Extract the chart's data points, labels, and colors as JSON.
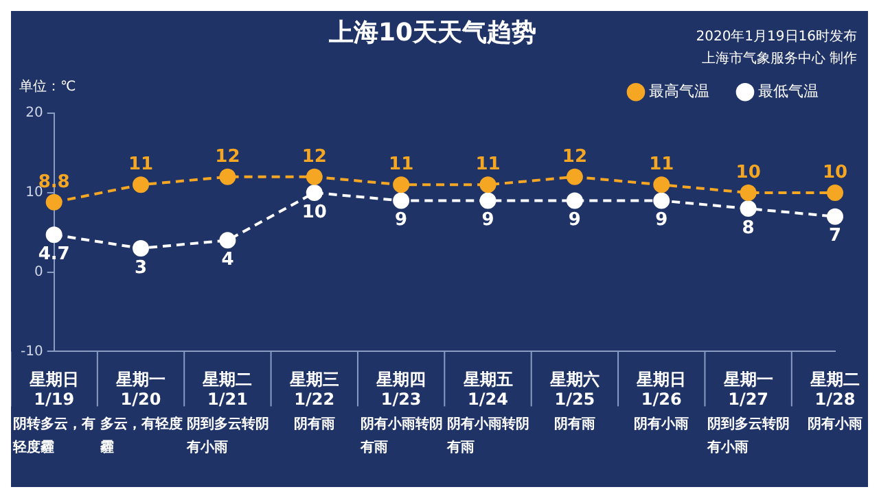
{
  "chart_data": {
    "type": "line",
    "title": "上海10天天气趋势",
    "ylabel": "单位：℃",
    "categories": [
      "星期日\n1/19",
      "星期一\n1/20",
      "星期二\n1/21",
      "星期三\n1/22",
      "星期四\n1/23",
      "星期五\n1/24",
      "星期六\n1/25",
      "星期日\n1/26",
      "星期一\n1/27",
      "星期二\n1/28"
    ],
    "series": [
      {
        "name": "最高气温",
        "color": "#f5a623",
        "values": [
          8.8,
          11,
          12,
          12,
          11,
          11,
          12,
          11,
          10,
          10
        ]
      },
      {
        "name": "最低气温",
        "color": "#ffffff",
        "values": [
          4.7,
          3,
          4,
          10,
          9,
          9,
          9,
          9,
          8,
          7
        ]
      }
    ],
    "ylim": [
      -10,
      20
    ],
    "yticks": [
      -10,
      0,
      10,
      20
    ],
    "grid": false,
    "legend": "top right",
    "marker": "circle",
    "line_style": "dashed",
    "data_labels": true,
    "annotations": [
      "2020年1月19日16时发布",
      "上海市气象服务中心 制作",
      "阴转多云，有轻度霾",
      "多云，有轻度霾",
      "阴到多云转阴有小雨",
      "阴有雨",
      "阴有小雨转阴有雨",
      "阴有小雨转阴有雨",
      "阴有雨",
      "阴有小雨",
      "阴到多云转阴有小雨",
      "阴有小雨"
    ]
  }
}
